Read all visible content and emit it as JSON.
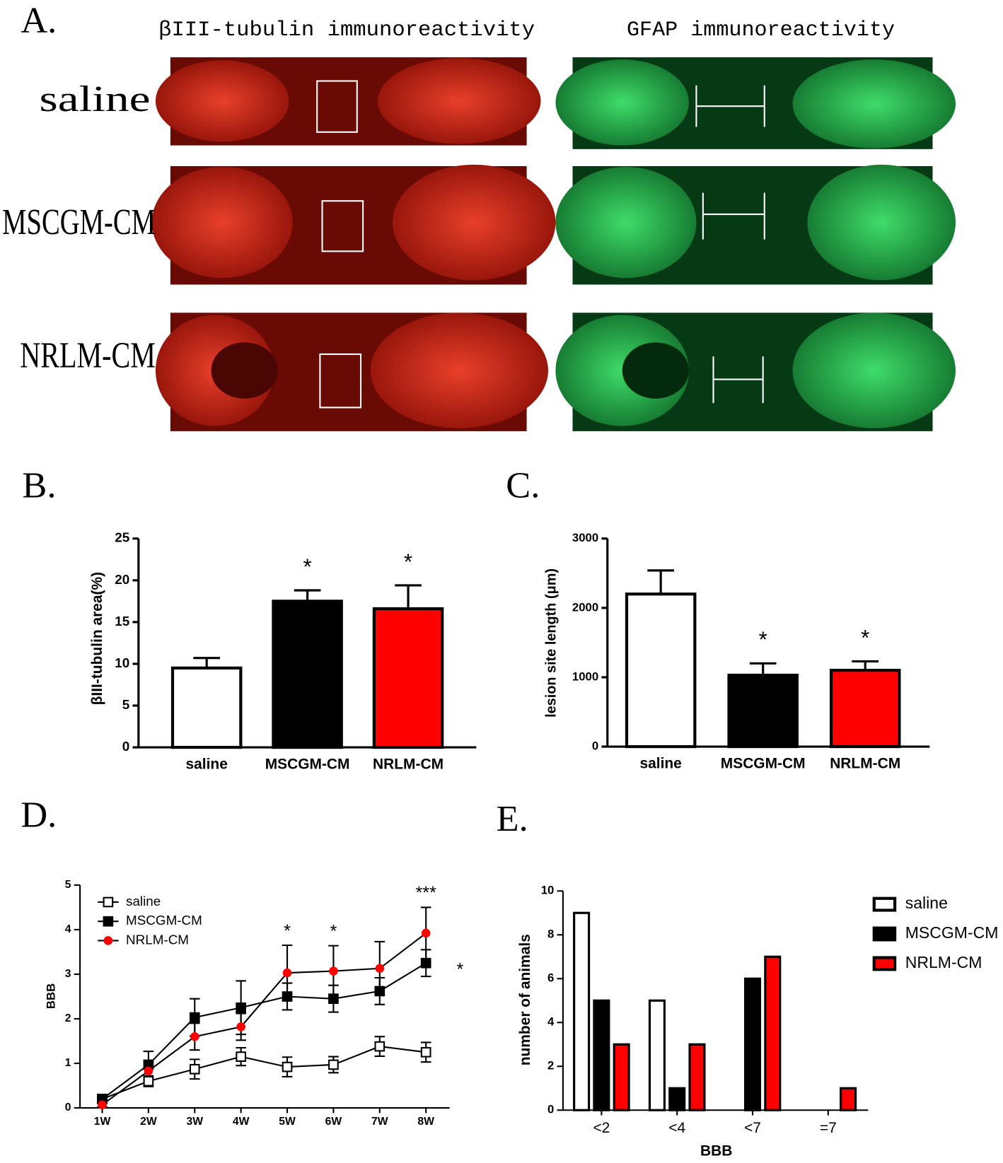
{
  "panel_labels": [
    "A.",
    "B.",
    "C.",
    "D.",
    "E."
  ],
  "images": {
    "column_titles": [
      "βIII-tubulin immunoreactivity",
      "GFAP immunoreactivity"
    ],
    "row_labels": [
      "saline",
      "MSCGM-CM",
      "NRLM-CM"
    ]
  },
  "chart_data": [
    {
      "type": "bar",
      "ylabel": "βIII-tubulin area(%)",
      "categories": [
        "saline",
        "MSCGM-CM",
        "NRLM-CM"
      ],
      "values": [
        9.5,
        17.5,
        16.6
      ],
      "errors": [
        1.2,
        1.3,
        2.8
      ],
      "colors": [
        "#ffffff",
        "#000000",
        "#ff0000"
      ],
      "ylim": [
        0,
        25
      ],
      "yticks": [
        0,
        5,
        10,
        15,
        20,
        25
      ],
      "annotations": [
        {
          "text": "*",
          "index": 1
        },
        {
          "text": "*",
          "index": 2
        }
      ]
    },
    {
      "type": "bar",
      "ylabel": "lesion site length (μm)",
      "categories": [
        "saline",
        "MSCGM-CM",
        "NRLM-CM"
      ],
      "values": [
        2200,
        1030,
        1100
      ],
      "errors": [
        340,
        170,
        130
      ],
      "colors": [
        "#ffffff",
        "#000000",
        "#ff0000"
      ],
      "ylim": [
        0,
        3000
      ],
      "yticks": [
        0,
        1000,
        2000,
        3000
      ],
      "annotations": [
        {
          "text": "*",
          "index": 1
        },
        {
          "text": "*",
          "index": 2
        }
      ]
    },
    {
      "type": "line",
      "ylabel": "BBB",
      "categories": [
        "1W",
        "2W",
        "3W",
        "4W",
        "5W",
        "6W",
        "7W",
        "8W"
      ],
      "series": [
        {
          "name": "saline",
          "color": "#000000",
          "marker": "open-square",
          "values": [
            0.2,
            0.6,
            0.87,
            1.15,
            0.92,
            0.97,
            1.38,
            1.25
          ],
          "errors": [
            0.1,
            0.12,
            0.22,
            0.2,
            0.22,
            0.18,
            0.22,
            0.22
          ]
        },
        {
          "name": "MSCGM-CM",
          "color": "#000000",
          "marker": "square",
          "values": [
            0.2,
            0.97,
            2.03,
            2.25,
            2.5,
            2.45,
            2.62,
            3.25
          ],
          "errors": [
            0.05,
            0.3,
            0.42,
            0.6,
            0.3,
            0.3,
            0.3,
            0.3
          ]
        },
        {
          "name": "NRLM-CM",
          "color": "#ff0000",
          "marker": "circle",
          "values": [
            0.07,
            0.83,
            1.6,
            1.82,
            3.03,
            3.07,
            3.13,
            3.92
          ],
          "errors": [
            0.05,
            0.2,
            0.3,
            0.3,
            0.62,
            0.57,
            0.6,
            0.58
          ]
        }
      ],
      "ylim": [
        0,
        5
      ],
      "yticks": [
        0,
        1,
        2,
        3,
        4,
        5
      ],
      "legend": "top-left",
      "annotations": [
        {
          "text": "*",
          "index": 4
        },
        {
          "text": "*",
          "index": 5
        },
        {
          "text": "***",
          "index": 7
        },
        {
          "text": "*"
        }
      ]
    },
    {
      "type": "grouped-bar",
      "ylabel": "number of animals",
      "xlabel": "BBB",
      "categories": [
        "<2",
        "<4",
        "<7",
        "=7"
      ],
      "series": [
        {
          "name": "saline",
          "color": "#ffffff",
          "values": [
            9,
            5,
            0,
            0
          ]
        },
        {
          "name": "MSCGM-CM",
          "color": "#000000",
          "values": [
            5,
            1,
            6,
            0
          ]
        },
        {
          "name": "NRLM-CM",
          "color": "#ff0000",
          "values": [
            3,
            3,
            7,
            1
          ]
        }
      ],
      "ylim": [
        0,
        10
      ],
      "yticks": [
        0,
        2,
        4,
        6,
        8,
        10
      ],
      "legend": "top-right"
    }
  ]
}
